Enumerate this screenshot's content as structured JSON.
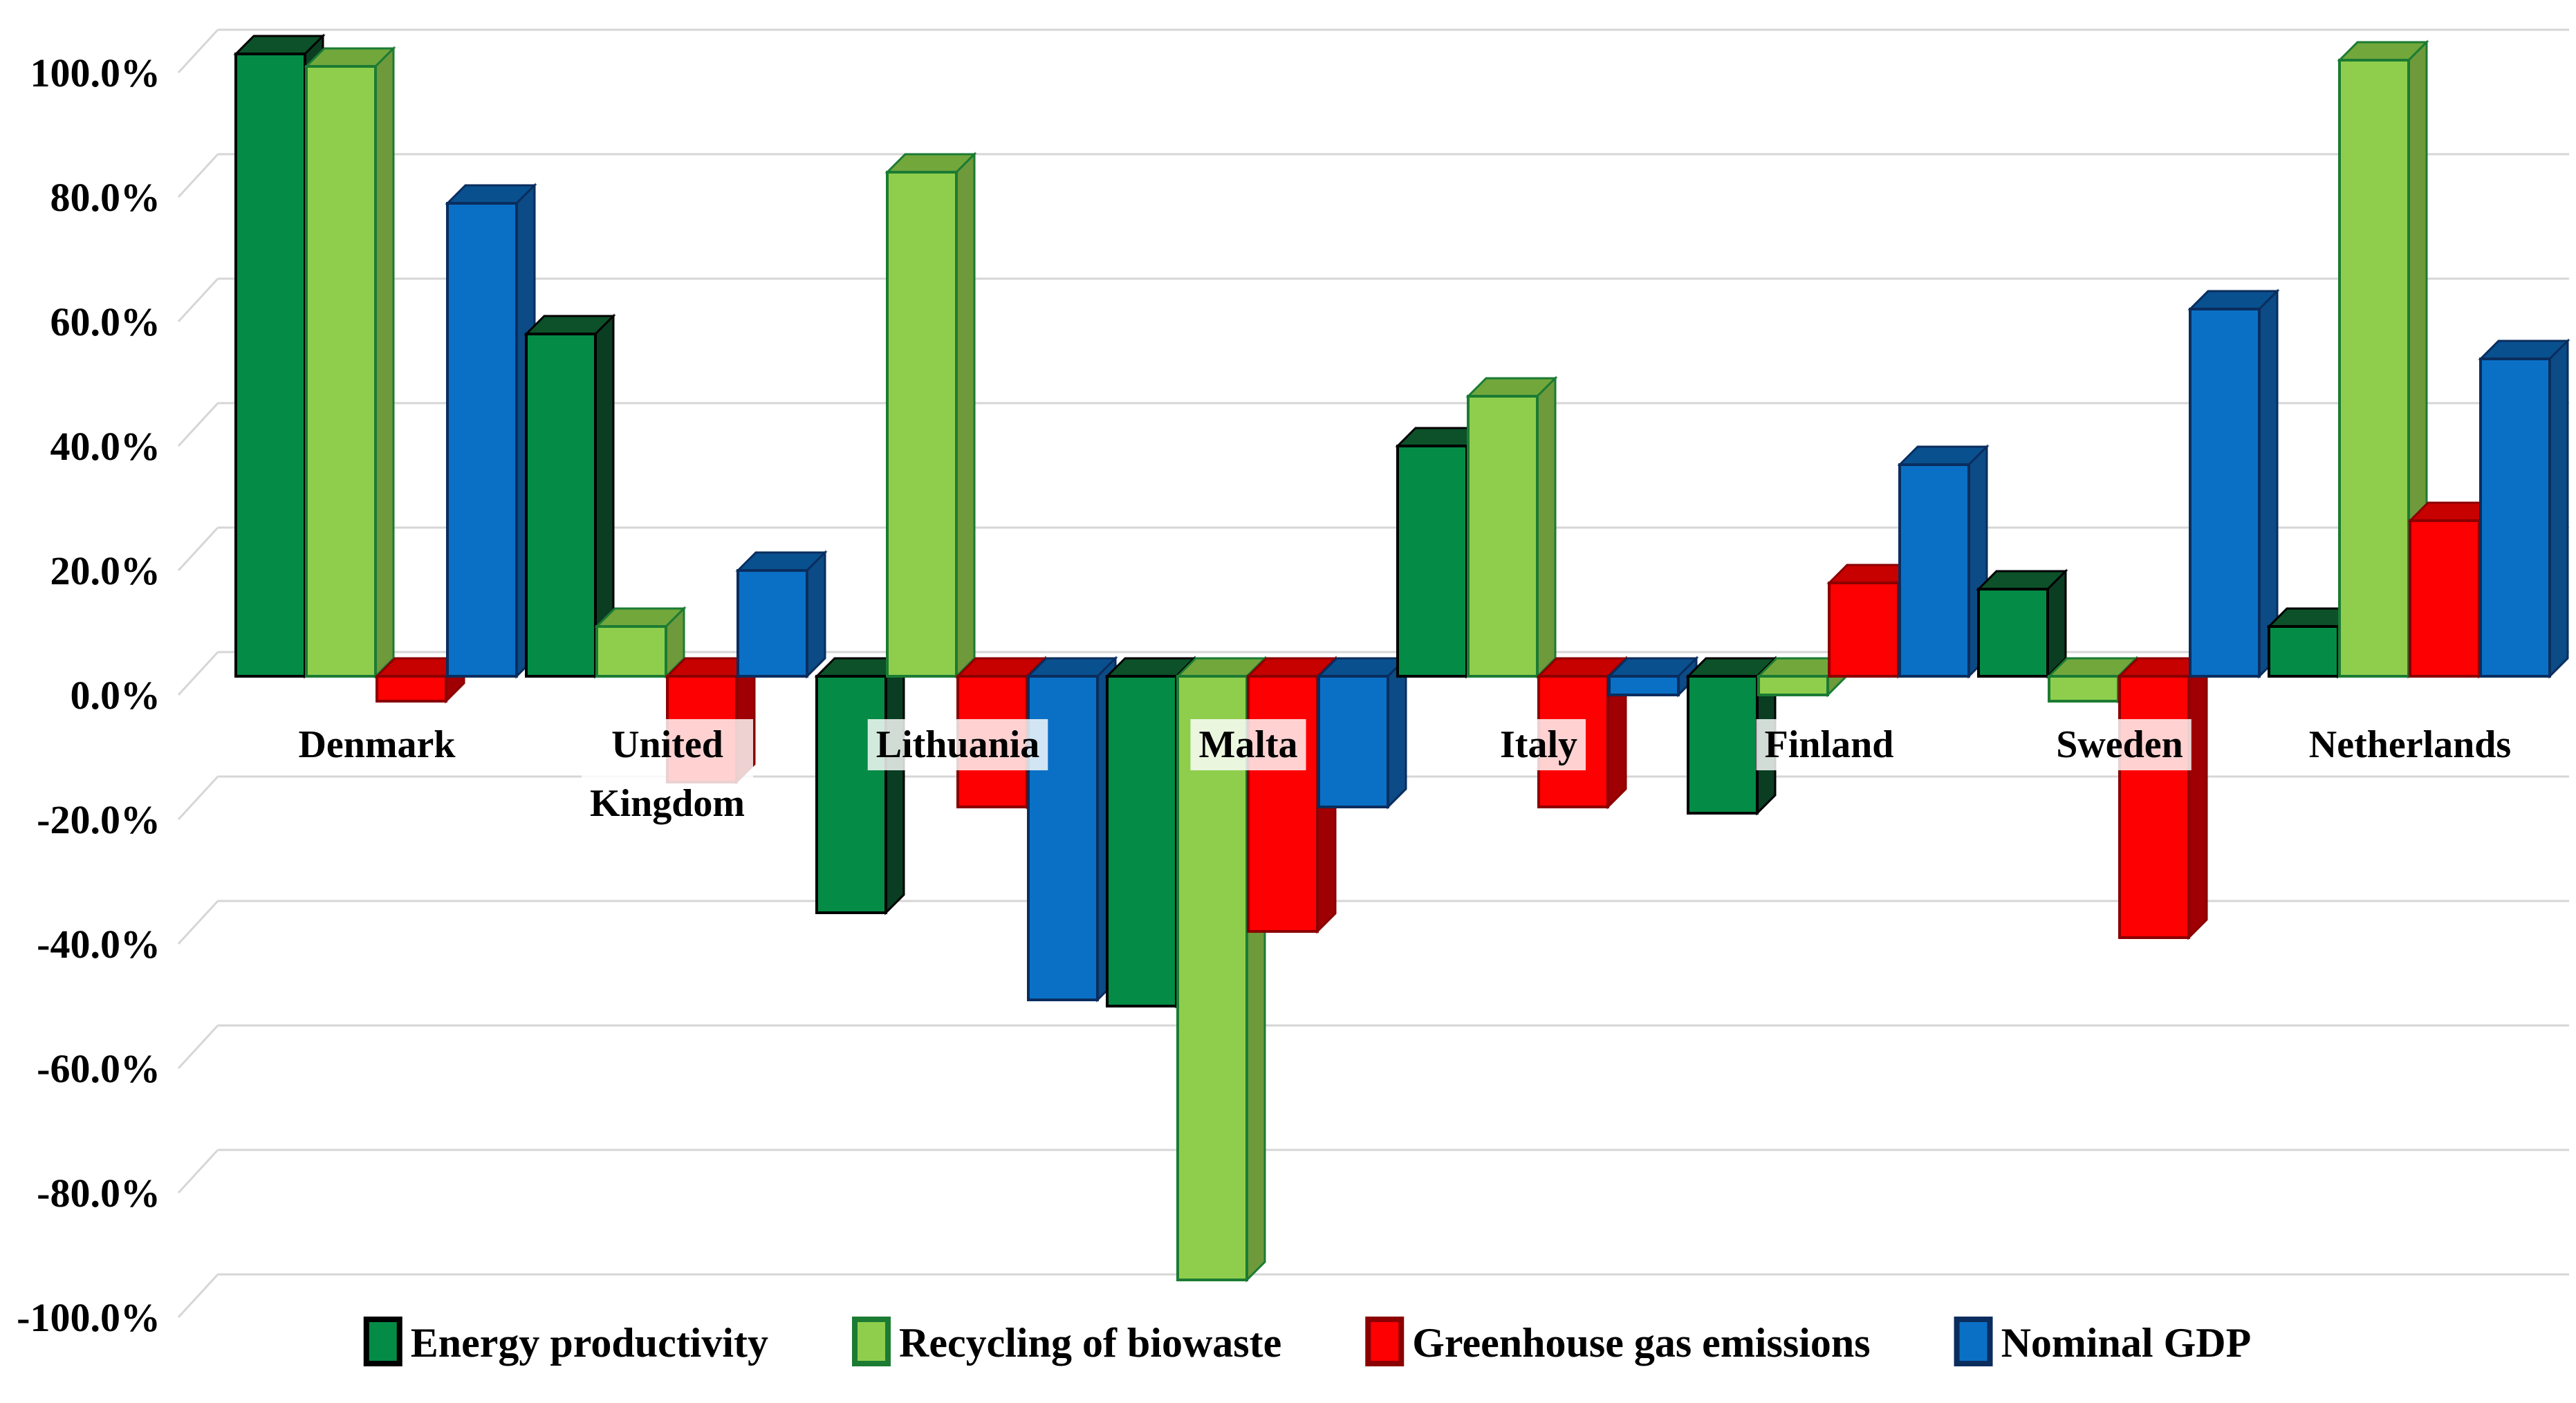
{
  "chart_data": {
    "type": "bar",
    "style": "3d-clustered-column",
    "title": "",
    "xlabel": "",
    "ylabel": "",
    "categories": [
      "Denmark",
      "United\nKingdom",
      "Lithuania",
      "Malta",
      "Italy",
      "Finland",
      "Sweden",
      "Netherlands"
    ],
    "series": [
      {
        "name": "Energy productivity",
        "color": "#048B45",
        "top_color": "#0C5129",
        "side_color": "#0A3D22",
        "border_color": "#000000",
        "values": [
          100,
          55,
          -38,
          -53,
          37,
          -22,
          14,
          8
        ]
      },
      {
        "name": "Recycling of biowaste",
        "color": "#8FCE4D",
        "top_color": "#72A73C",
        "side_color": "#6E9A3B",
        "border_color": "#1B7B33",
        "values": [
          98,
          8,
          81,
          -97,
          45,
          -3,
          -4,
          99
        ]
      },
      {
        "name": "Greenhouse gas emissions",
        "color": "#FD0002",
        "top_color": "#C70000",
        "side_color": "#9E0003",
        "border_color": "#8B0000",
        "values": [
          -4,
          -17,
          -21,
          -41,
          -21,
          15,
          -42,
          25
        ]
      },
      {
        "name": "Nominal GDP",
        "color": "#0A70C5",
        "top_color": "#09508F",
        "side_color": "#0C4B85",
        "border_color": "#0A2D5E",
        "values": [
          76,
          17,
          -52,
          -21,
          -3,
          34,
          59,
          51
        ]
      }
    ],
    "ylim": [
      -100,
      100
    ],
    "ytick_step": 20,
    "ytick_labels": [
      "100.0%",
      "80.0%",
      "60.0%",
      "40.0%",
      "20.0%",
      "0.0%",
      "-20.0%",
      "-40.0%",
      "-60.0%",
      "-80.0%",
      "-100.0%"
    ],
    "grid": true,
    "legend_position": "bottom"
  },
  "colors": {
    "background": "#FFFFFF",
    "gridline": "#D6D6D6",
    "text": "#000000",
    "category_label_bg": "rgba(255,255,255,0.82)"
  }
}
